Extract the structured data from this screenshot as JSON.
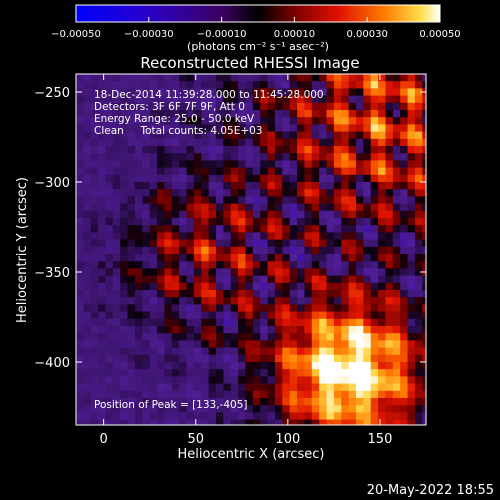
{
  "chart_data": {
    "type": "heatmap",
    "title": "Reconstructed RHESSI Image",
    "xlabel": "Heliocentric X (arcsec)",
    "ylabel": "Heliocentric Y (arcsec)",
    "xlim": [
      -15,
      175
    ],
    "ylim": [
      -435,
      -240
    ],
    "x_ticks": [
      0,
      50,
      100,
      150
    ],
    "y_ticks": [
      -250,
      -300,
      -350,
      -400
    ],
    "colorbar": {
      "label": "(photons cm⁻² s⁻¹ asec⁻²)",
      "range": [
        -0.0005,
        0.0005
      ],
      "ticks": [
        -0.0005,
        -0.0003,
        -0.0001,
        0.0001,
        0.0003,
        0.0005
      ],
      "tick_labels": [
        "−0.00050",
        "−0.00030",
        "−0.00010",
        "0.00010",
        "0.00030",
        "0.00050"
      ]
    },
    "annotations": [
      "18-Dec-2014 11:39:28.000 to 11:45:28.000",
      "Detectors: 3F 6F 7F 9F, Att 0",
      "Energy Range: 25.0 - 50.0 keV",
      "Clean     Total counts: 4.05E+03"
    ],
    "peak_label": "Position of Peak = [133,-405]",
    "peak": [
      133,
      -405
    ],
    "grid": false
  },
  "footer": {
    "timestamp": "20-May-2022 18:55"
  }
}
